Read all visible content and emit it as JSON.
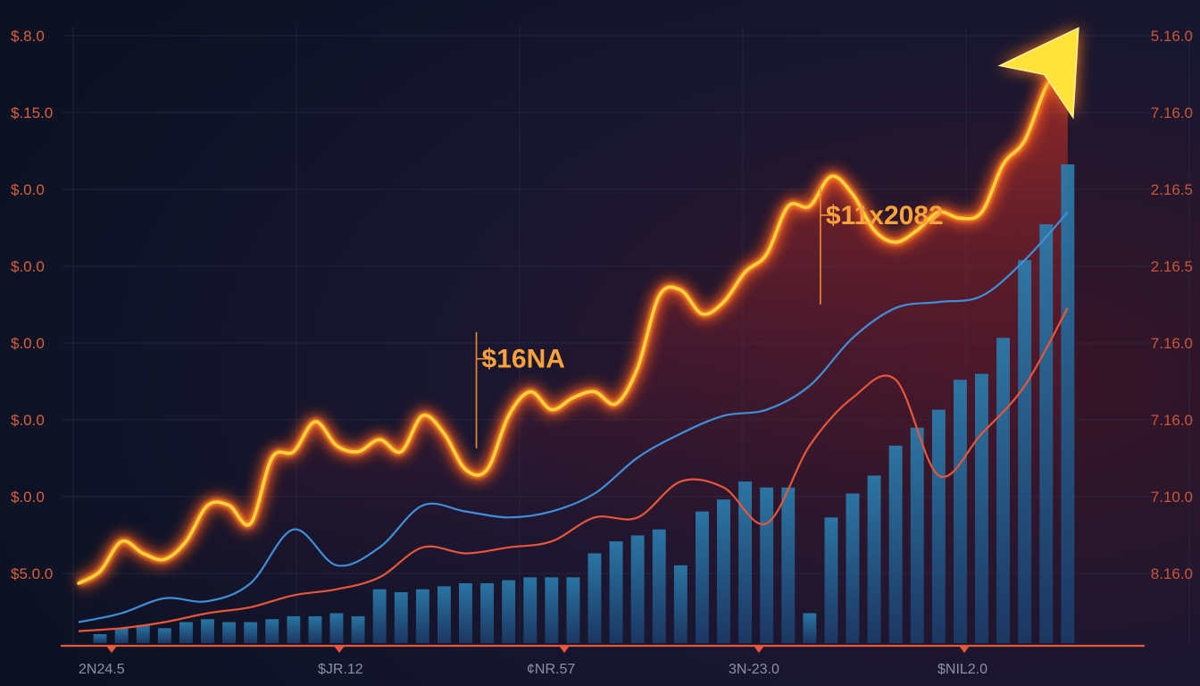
{
  "chart_data": {
    "type": "line",
    "title": "",
    "xlabel": "",
    "ylabel": "",
    "y_left_ticks": [
      "$.8.0",
      "$.15.0",
      "$.0.0",
      "$.0.0",
      "$.0.0",
      "$.0.0",
      "$.0.0",
      "$5.0.0"
    ],
    "y_right_ticks": [
      "5.16.0",
      "7.16.0",
      "2.16.5",
      "2.16.5",
      "7.16.0",
      "7.16.0",
      "7.10.0",
      "8.16.0"
    ],
    "x_ticks": [
      "2N24.5",
      "$JR.12",
      "¢NR.57",
      "3N-23.0",
      "$NIL2.0"
    ],
    "annotations": [
      {
        "text": "$16NA",
        "x": 18.5,
        "y": 4.9
      },
      {
        "text": "$11x2082",
        "x": 34.5,
        "y": 7.3
      }
    ],
    "x_range": [
      0,
      48
    ],
    "y_range": [
      0,
      10
    ],
    "grid": true,
    "colors": {
      "background": "#0e1426",
      "glow_line": "#ffd23a",
      "glow_outer": "#ff5a1e",
      "blue_line": "#3f8fd8",
      "red_line": "#e8563a",
      "bars": "#2f6fa0",
      "axis": "#e8563a",
      "arrow": "#ffe23a"
    },
    "series": [
      {
        "type": "line",
        "style": "glow",
        "x": [
          0,
          1,
          2,
          3,
          4,
          5,
          6,
          7,
          8,
          9,
          10,
          11,
          12,
          13,
          14,
          15,
          16,
          17,
          18,
          19,
          20,
          21,
          22,
          23,
          24,
          25,
          26,
          27,
          28,
          29,
          30,
          31,
          32,
          33,
          34,
          35,
          36,
          37,
          38,
          39,
          40,
          41,
          42,
          43,
          44,
          45,
          46
        ],
        "values": [
          1.0,
          1.2,
          1.7,
          1.5,
          1.4,
          1.7,
          2.3,
          2.3,
          2.0,
          3.1,
          3.2,
          3.7,
          3.3,
          3.2,
          3.4,
          3.2,
          3.8,
          3.5,
          2.9,
          2.9,
          3.8,
          4.2,
          3.9,
          4.1,
          4.2,
          4.0,
          4.6,
          5.8,
          5.9,
          5.5,
          5.7,
          6.2,
          6.5,
          7.3,
          7.3,
          7.8,
          7.5,
          6.9,
          6.7,
          6.9,
          7.2,
          7.1,
          7.2,
          8.0,
          8.4,
          9.3,
          9.8
        ]
      },
      {
        "type": "line",
        "style": "thin",
        "x": [
          0,
          2,
          4,
          6,
          8,
          10,
          12,
          14,
          16,
          18,
          20,
          22,
          24,
          26,
          28,
          30,
          32,
          34,
          36,
          38,
          40,
          42,
          44,
          46
        ],
        "values": [
          0.35,
          0.5,
          0.75,
          0.7,
          1.0,
          1.9,
          1.3,
          1.6,
          2.3,
          2.2,
          2.1,
          2.2,
          2.5,
          3.1,
          3.5,
          3.8,
          3.9,
          4.3,
          5.1,
          5.6,
          5.7,
          5.8,
          6.4,
          7.2
        ]
      },
      {
        "type": "line",
        "style": "thin",
        "x": [
          0,
          2,
          4,
          6,
          8,
          10,
          12,
          14,
          16,
          18,
          20,
          22,
          24,
          26,
          28,
          30,
          32,
          34,
          36,
          38,
          40,
          42,
          44,
          46
        ],
        "values": [
          0.2,
          0.25,
          0.35,
          0.5,
          0.6,
          0.8,
          0.9,
          1.1,
          1.6,
          1.5,
          1.6,
          1.7,
          2.1,
          2.1,
          2.7,
          2.6,
          2.0,
          3.3,
          4.1,
          4.4,
          2.8,
          3.5,
          4.3,
          5.6
        ]
      },
      {
        "type": "bar",
        "x": [
          1,
          2,
          3,
          4,
          5,
          6,
          7,
          8,
          9,
          10,
          11,
          12,
          13,
          14,
          15,
          16,
          17,
          18,
          19,
          20,
          21,
          22,
          23,
          24,
          25,
          26,
          27,
          28,
          29,
          30,
          31,
          32,
          33,
          34,
          35,
          36,
          37,
          38,
          39,
          40,
          41,
          42,
          43,
          44,
          45,
          46
        ],
        "values": [
          0.15,
          0.25,
          0.3,
          0.25,
          0.35,
          0.4,
          0.35,
          0.35,
          0.4,
          0.45,
          0.45,
          0.5,
          0.45,
          0.9,
          0.85,
          0.9,
          0.95,
          1.0,
          1.0,
          1.05,
          1.1,
          1.1,
          1.1,
          1.5,
          1.7,
          1.8,
          1.9,
          1.3,
          2.2,
          2.4,
          2.7,
          2.6,
          2.6,
          0.5,
          2.1,
          2.5,
          2.8,
          3.3,
          3.6,
          3.9,
          4.4,
          4.5,
          5.1,
          6.4,
          7.0,
          8.0
        ]
      }
    ]
  }
}
